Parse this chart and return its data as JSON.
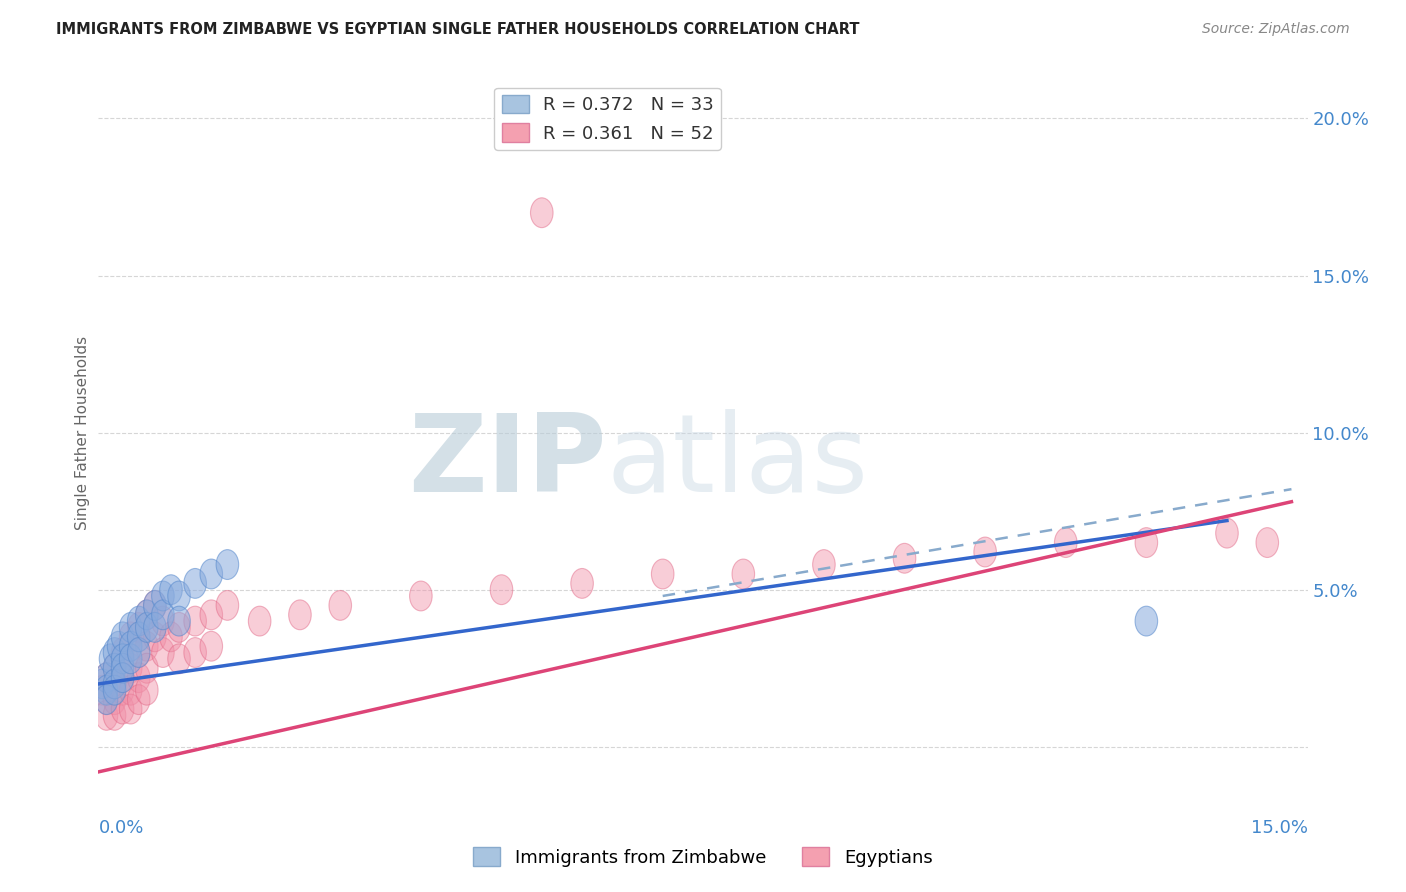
{
  "title": "IMMIGRANTS FROM ZIMBABWE VS EGYPTIAN SINGLE FATHER HOUSEHOLDS CORRELATION CHART",
  "source": "Source: ZipAtlas.com",
  "ylabel": "Single Father Households",
  "yticks": [
    0.0,
    0.05,
    0.1,
    0.15,
    0.2
  ],
  "ytick_labels": [
    "",
    "5.0%",
    "10.0%",
    "15.0%",
    "20.0%"
  ],
  "xlim": [
    0.0,
    0.15
  ],
  "ylim": [
    -0.015,
    0.215
  ],
  "watermark_zip": "ZIP",
  "watermark_atlas": "atlas",
  "watermark_color": "#c8d8e8",
  "blue_scatter": [
    [
      0.0005,
      0.02
    ],
    [
      0.001,
      0.022
    ],
    [
      0.001,
      0.018
    ],
    [
      0.001,
      0.015
    ],
    [
      0.0015,
      0.028
    ],
    [
      0.002,
      0.03
    ],
    [
      0.002,
      0.025
    ],
    [
      0.002,
      0.02
    ],
    [
      0.002,
      0.018
    ],
    [
      0.0025,
      0.032
    ],
    [
      0.003,
      0.035
    ],
    [
      0.003,
      0.028
    ],
    [
      0.003,
      0.025
    ],
    [
      0.003,
      0.022
    ],
    [
      0.004,
      0.038
    ],
    [
      0.004,
      0.032
    ],
    [
      0.004,
      0.028
    ],
    [
      0.005,
      0.04
    ],
    [
      0.005,
      0.035
    ],
    [
      0.005,
      0.03
    ],
    [
      0.006,
      0.042
    ],
    [
      0.006,
      0.038
    ],
    [
      0.007,
      0.045
    ],
    [
      0.007,
      0.038
    ],
    [
      0.008,
      0.048
    ],
    [
      0.008,
      0.042
    ],
    [
      0.009,
      0.05
    ],
    [
      0.01,
      0.048
    ],
    [
      0.01,
      0.04
    ],
    [
      0.012,
      0.052
    ],
    [
      0.014,
      0.055
    ],
    [
      0.016,
      0.058
    ],
    [
      0.13,
      0.04
    ]
  ],
  "pink_scatter": [
    [
      0.0005,
      0.018
    ],
    [
      0.001,
      0.022
    ],
    [
      0.001,
      0.015
    ],
    [
      0.001,
      0.01
    ],
    [
      0.002,
      0.025
    ],
    [
      0.002,
      0.02
    ],
    [
      0.002,
      0.015
    ],
    [
      0.002,
      0.01
    ],
    [
      0.003,
      0.03
    ],
    [
      0.003,
      0.022
    ],
    [
      0.003,
      0.018
    ],
    [
      0.003,
      0.012
    ],
    [
      0.004,
      0.035
    ],
    [
      0.004,
      0.025
    ],
    [
      0.004,
      0.018
    ],
    [
      0.004,
      0.012
    ],
    [
      0.005,
      0.038
    ],
    [
      0.005,
      0.03
    ],
    [
      0.005,
      0.022
    ],
    [
      0.005,
      0.015
    ],
    [
      0.006,
      0.042
    ],
    [
      0.006,
      0.032
    ],
    [
      0.006,
      0.025
    ],
    [
      0.006,
      0.018
    ],
    [
      0.007,
      0.045
    ],
    [
      0.007,
      0.035
    ],
    [
      0.008,
      0.04
    ],
    [
      0.008,
      0.03
    ],
    [
      0.009,
      0.035
    ],
    [
      0.01,
      0.038
    ],
    [
      0.01,
      0.028
    ],
    [
      0.012,
      0.04
    ],
    [
      0.012,
      0.03
    ],
    [
      0.014,
      0.042
    ],
    [
      0.014,
      0.032
    ],
    [
      0.016,
      0.045
    ],
    [
      0.02,
      0.04
    ],
    [
      0.025,
      0.042
    ],
    [
      0.03,
      0.045
    ],
    [
      0.04,
      0.048
    ],
    [
      0.05,
      0.05
    ],
    [
      0.06,
      0.052
    ],
    [
      0.07,
      0.055
    ],
    [
      0.08,
      0.055
    ],
    [
      0.09,
      0.058
    ],
    [
      0.1,
      0.06
    ],
    [
      0.11,
      0.062
    ],
    [
      0.12,
      0.065
    ],
    [
      0.13,
      0.065
    ],
    [
      0.14,
      0.068
    ],
    [
      0.145,
      0.065
    ],
    [
      0.055,
      0.17
    ]
  ],
  "blue_line": {
    "x0": 0.0,
    "y0": 0.02,
    "x1": 0.14,
    "y1": 0.072
  },
  "blue_dashed_line": {
    "x0": 0.07,
    "y0": 0.048,
    "x1": 0.148,
    "y1": 0.082
  },
  "pink_line": {
    "x0": 0.0,
    "y0": -0.008,
    "x1": 0.148,
    "y1": 0.078
  },
  "blue_line_color": "#3366cc",
  "pink_line_color": "#dd4477",
  "grid_color": "#cccccc",
  "background_color": "#ffffff",
  "axis_label_color": "#4488cc",
  "title_color": "#222222",
  "source_color": "#888888",
  "ylabel_color": "#666666"
}
